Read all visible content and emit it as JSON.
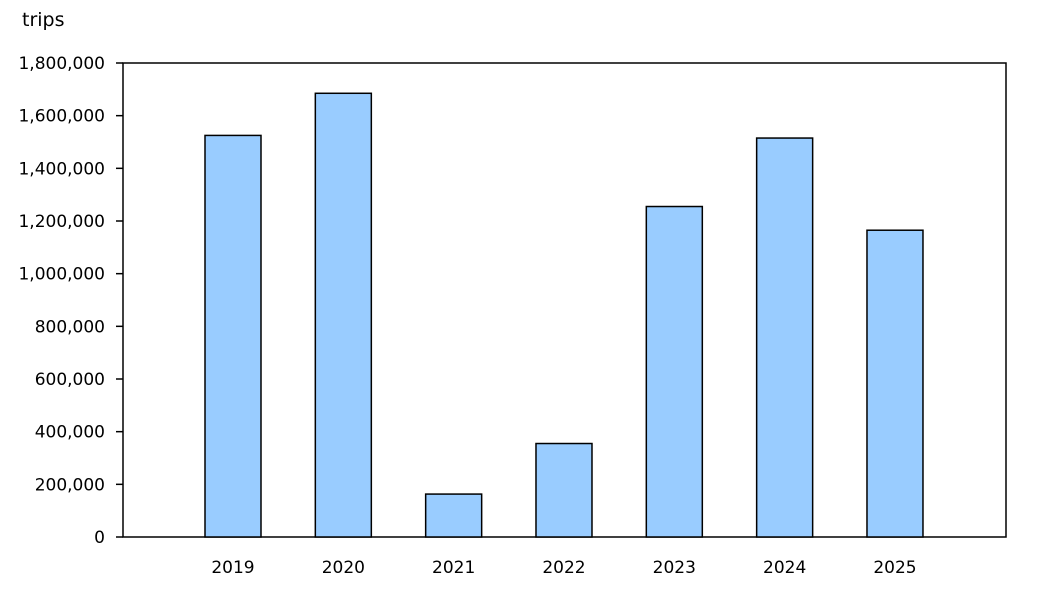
{
  "chart_data": {
    "type": "bar",
    "ylabel": "trips",
    "categories": [
      "2019",
      "2020",
      "2021",
      "2022",
      "2023",
      "2024",
      "2025"
    ],
    "values": [
      1525000,
      1685000,
      163000,
      355000,
      1255000,
      1515000,
      1165000
    ],
    "ylim": [
      0,
      1800000
    ],
    "yticks": [
      0,
      200000,
      400000,
      600000,
      800000,
      1000000,
      1200000,
      1400000,
      1600000,
      1800000
    ],
    "ytick_labels": [
      "0",
      "200,000",
      "400,000",
      "600,000",
      "800,000",
      "1,000,000",
      "1,200,000",
      "1,400,000",
      "1,600,000",
      "1,800,000"
    ],
    "grid": false,
    "legend": "none",
    "colors": {
      "bar_fill": "#99ccff",
      "bar_stroke": "#000000",
      "frame": "#000000"
    }
  }
}
